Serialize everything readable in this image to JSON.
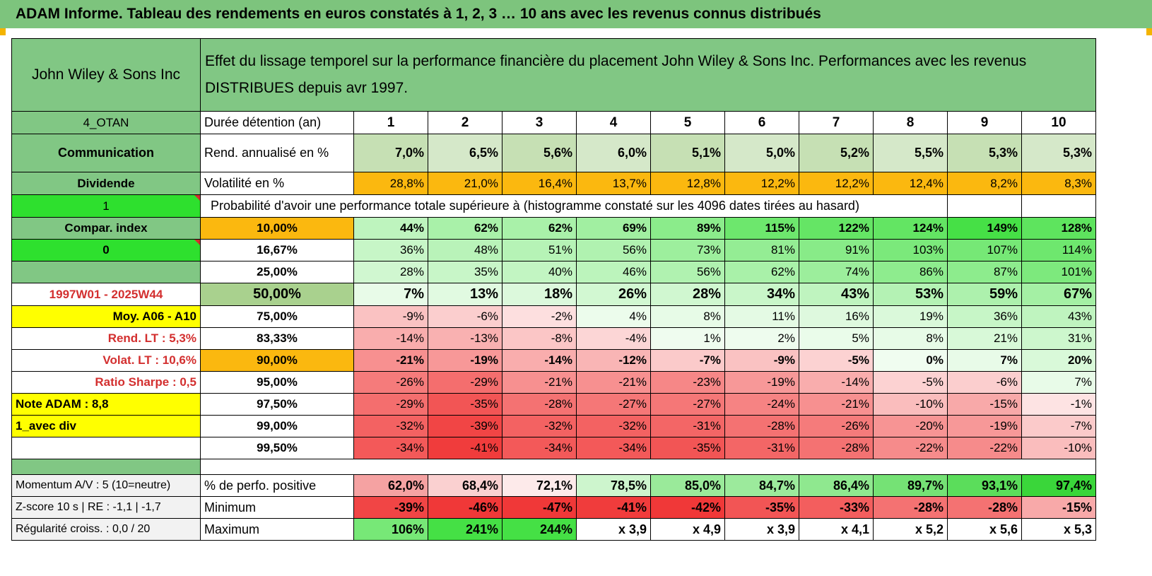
{
  "title": "ADAM Informe. Tableau des rendements en euros constatés à 1, 2, 3 … 10 ans avec les revenus connus distribués",
  "header": {
    "company": "John Wiley & Sons Inc",
    "description": "Effet du lissage temporel sur la performance financière du placement John Wiley & Sons Inc. Performances avec les revenus DISTRIBUES depuis avr 1997."
  },
  "left": {
    "code": "4_OTAN",
    "sector": "Communication",
    "type": "Dividende",
    "flag1": "1",
    "compar_label": "Compar. index",
    "flag0": "0",
    "blank": "",
    "period": "1997W01 - 2025W44",
    "moy": "Moy. A06 - A10",
    "rend_lt": "Rend. LT :    5,3%",
    "volat_lt": "Volat. LT :    10,6%",
    "sharpe": "Ratio Sharpe :    0,5",
    "note": "Note ADAM : 8,8",
    "avec_div": "1_avec div",
    "momentum": "Momentum A/V : 5 (10=neutre)",
    "zscore": "Z-score 10 s | RE : -1,1 | -1,7",
    "regularite": "Régularité croiss. : 0,0 / 20"
  },
  "labels": {
    "duree": "Durée détention (an)",
    "rend": "Rend. annualisé en %",
    "vol": "Volatilité en %",
    "proba": "Probabilité d'avoir une performance totale supérieure à (histogramme constaté sur les 4096 dates tirées au hasard)",
    "perf_pos": "% de perfo. positive",
    "minimum": "Minimum",
    "maximum": "Maximum"
  },
  "years": [
    "1",
    "2",
    "3",
    "4",
    "5",
    "6",
    "7",
    "8",
    "9",
    "10"
  ],
  "rend": [
    "7,0%",
    "6,5%",
    "5,6%",
    "6,0%",
    "5,1%",
    "5,0%",
    "5,2%",
    "5,5%",
    "5,3%",
    "5,3%"
  ],
  "vol": [
    "28,8%",
    "21,0%",
    "16,4%",
    "13,7%",
    "12,8%",
    "12,2%",
    "12,2%",
    "12,4%",
    "8,2%",
    "8,3%"
  ],
  "prob_rows": [
    {
      "pct": "10,00%",
      "vals": [
        "44%",
        "62%",
        "62%",
        "69%",
        "89%",
        "115%",
        "122%",
        "124%",
        "149%",
        "128%"
      ]
    },
    {
      "pct": "16,67%",
      "vals": [
        "36%",
        "48%",
        "51%",
        "56%",
        "73%",
        "81%",
        "91%",
        "103%",
        "107%",
        "114%"
      ]
    },
    {
      "pct": "25,00%",
      "vals": [
        "28%",
        "35%",
        "40%",
        "46%",
        "56%",
        "62%",
        "74%",
        "86%",
        "87%",
        "101%"
      ]
    },
    {
      "pct": "50,00%",
      "vals": [
        "7%",
        "13%",
        "18%",
        "26%",
        "28%",
        "34%",
        "43%",
        "53%",
        "59%",
        "67%"
      ]
    },
    {
      "pct": "75,00%",
      "vals": [
        "-9%",
        "-6%",
        "-2%",
        "4%",
        "8%",
        "11%",
        "16%",
        "19%",
        "36%",
        "43%"
      ]
    },
    {
      "pct": "83,33%",
      "vals": [
        "-14%",
        "-13%",
        "-8%",
        "-4%",
        "1%",
        "2%",
        "5%",
        "8%",
        "21%",
        "31%"
      ]
    },
    {
      "pct": "90,00%",
      "vals": [
        "-21%",
        "-19%",
        "-14%",
        "-12%",
        "-7%",
        "-9%",
        "-5%",
        "0%",
        "7%",
        "20%"
      ]
    },
    {
      "pct": "95,00%",
      "vals": [
        "-26%",
        "-29%",
        "-21%",
        "-21%",
        "-23%",
        "-19%",
        "-14%",
        "-5%",
        "-6%",
        "7%"
      ]
    },
    {
      "pct": "97,50%",
      "vals": [
        "-29%",
        "-35%",
        "-28%",
        "-27%",
        "-27%",
        "-24%",
        "-21%",
        "-10%",
        "-15%",
        "-1%"
      ]
    },
    {
      "pct": "99,00%",
      "vals": [
        "-32%",
        "-39%",
        "-32%",
        "-32%",
        "-31%",
        "-28%",
        "-26%",
        "-20%",
        "-19%",
        "-7%"
      ]
    },
    {
      "pct": "99,50%",
      "vals": [
        "-34%",
        "-41%",
        "-34%",
        "-34%",
        "-35%",
        "-31%",
        "-28%",
        "-22%",
        "-22%",
        "-10%"
      ]
    }
  ],
  "perf_pos": [
    "62,0%",
    "68,4%",
    "72,1%",
    "78,5%",
    "85,0%",
    "84,7%",
    "86,4%",
    "89,7%",
    "93,1%",
    "97,4%"
  ],
  "minimum": [
    "-39%",
    "-46%",
    "-47%",
    "-41%",
    "-42%",
    "-35%",
    "-33%",
    "-28%",
    "-28%",
    "-15%"
  ],
  "maximum": [
    "106%",
    "241%",
    "244%",
    "x 3,9",
    "x 4,9",
    "x 3,9",
    "x 4,1",
    "x 5,2",
    "x 5,6",
    "x 5,3"
  ],
  "colors": {
    "header_green": "#81c784",
    "bright_green": "#2ee02e",
    "yellow": "#ffff00",
    "orange": "#fbb80f",
    "red_text": "#d32f2f"
  }
}
